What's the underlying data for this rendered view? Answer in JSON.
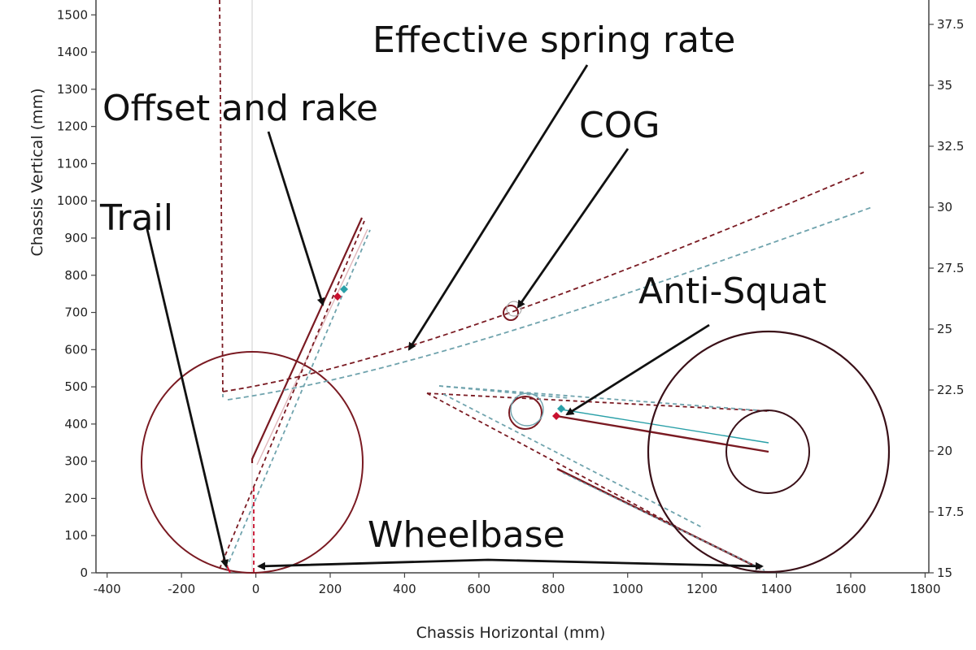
{
  "colors": {
    "frame": "#7a1a22",
    "frame_alt": "#6fa3ad",
    "axis": "#444444",
    "grid": "#d6d6d6",
    "arrow": "#111111",
    "marker_red": "#c8102e",
    "marker_teal": "#2aa0a8"
  },
  "chart_data": {
    "type": "diagram-plot",
    "xlabel": "Chassis Horizontal (mm)",
    "ylabel": "Chassis Vertical (mm)",
    "xlim": [
      -430,
      1810
    ],
    "ylim": [
      0,
      1540
    ],
    "y2lim": [
      15,
      38.5
    ],
    "x_ticks": [
      "-400",
      "-200",
      "0",
      "200",
      "400",
      "600",
      "800",
      "1000",
      "1200",
      "1400",
      "1600",
      "1800"
    ],
    "y_ticks": [
      "0",
      "100",
      "200",
      "300",
      "400",
      "500",
      "600",
      "700",
      "800",
      "900",
      "1000",
      "1100",
      "1200",
      "1300",
      "1400",
      "1500"
    ],
    "y2_ticks": [
      "15",
      "17.5",
      "20",
      "22.5",
      "25",
      "27.5",
      "30",
      "32.5",
      "35",
      "37.5"
    ],
    "front_wheel": {
      "cx": 0,
      "cy": 300,
      "r": 300
    },
    "rear_wheel": {
      "cx": 1400,
      "cy": 330,
      "r": 320
    },
    "rear_hub": {
      "cx": 1400,
      "cy": 330,
      "r": 110
    },
    "cog": {
      "x": 700,
      "y": 700
    },
    "pivot": {
      "x": 745,
      "y": 430
    },
    "anti_squat_point": {
      "x": 830,
      "y": 425
    },
    "fork_marker": {
      "x": 230,
      "y": 750
    }
  },
  "annotations": {
    "spring_rate": "Effective spring rate",
    "offset_rake": "Offset and rake",
    "cog": "COG",
    "trail": "Trail",
    "anti_squat": "Anti-Squat",
    "wheelbase": "Wheelbase"
  }
}
